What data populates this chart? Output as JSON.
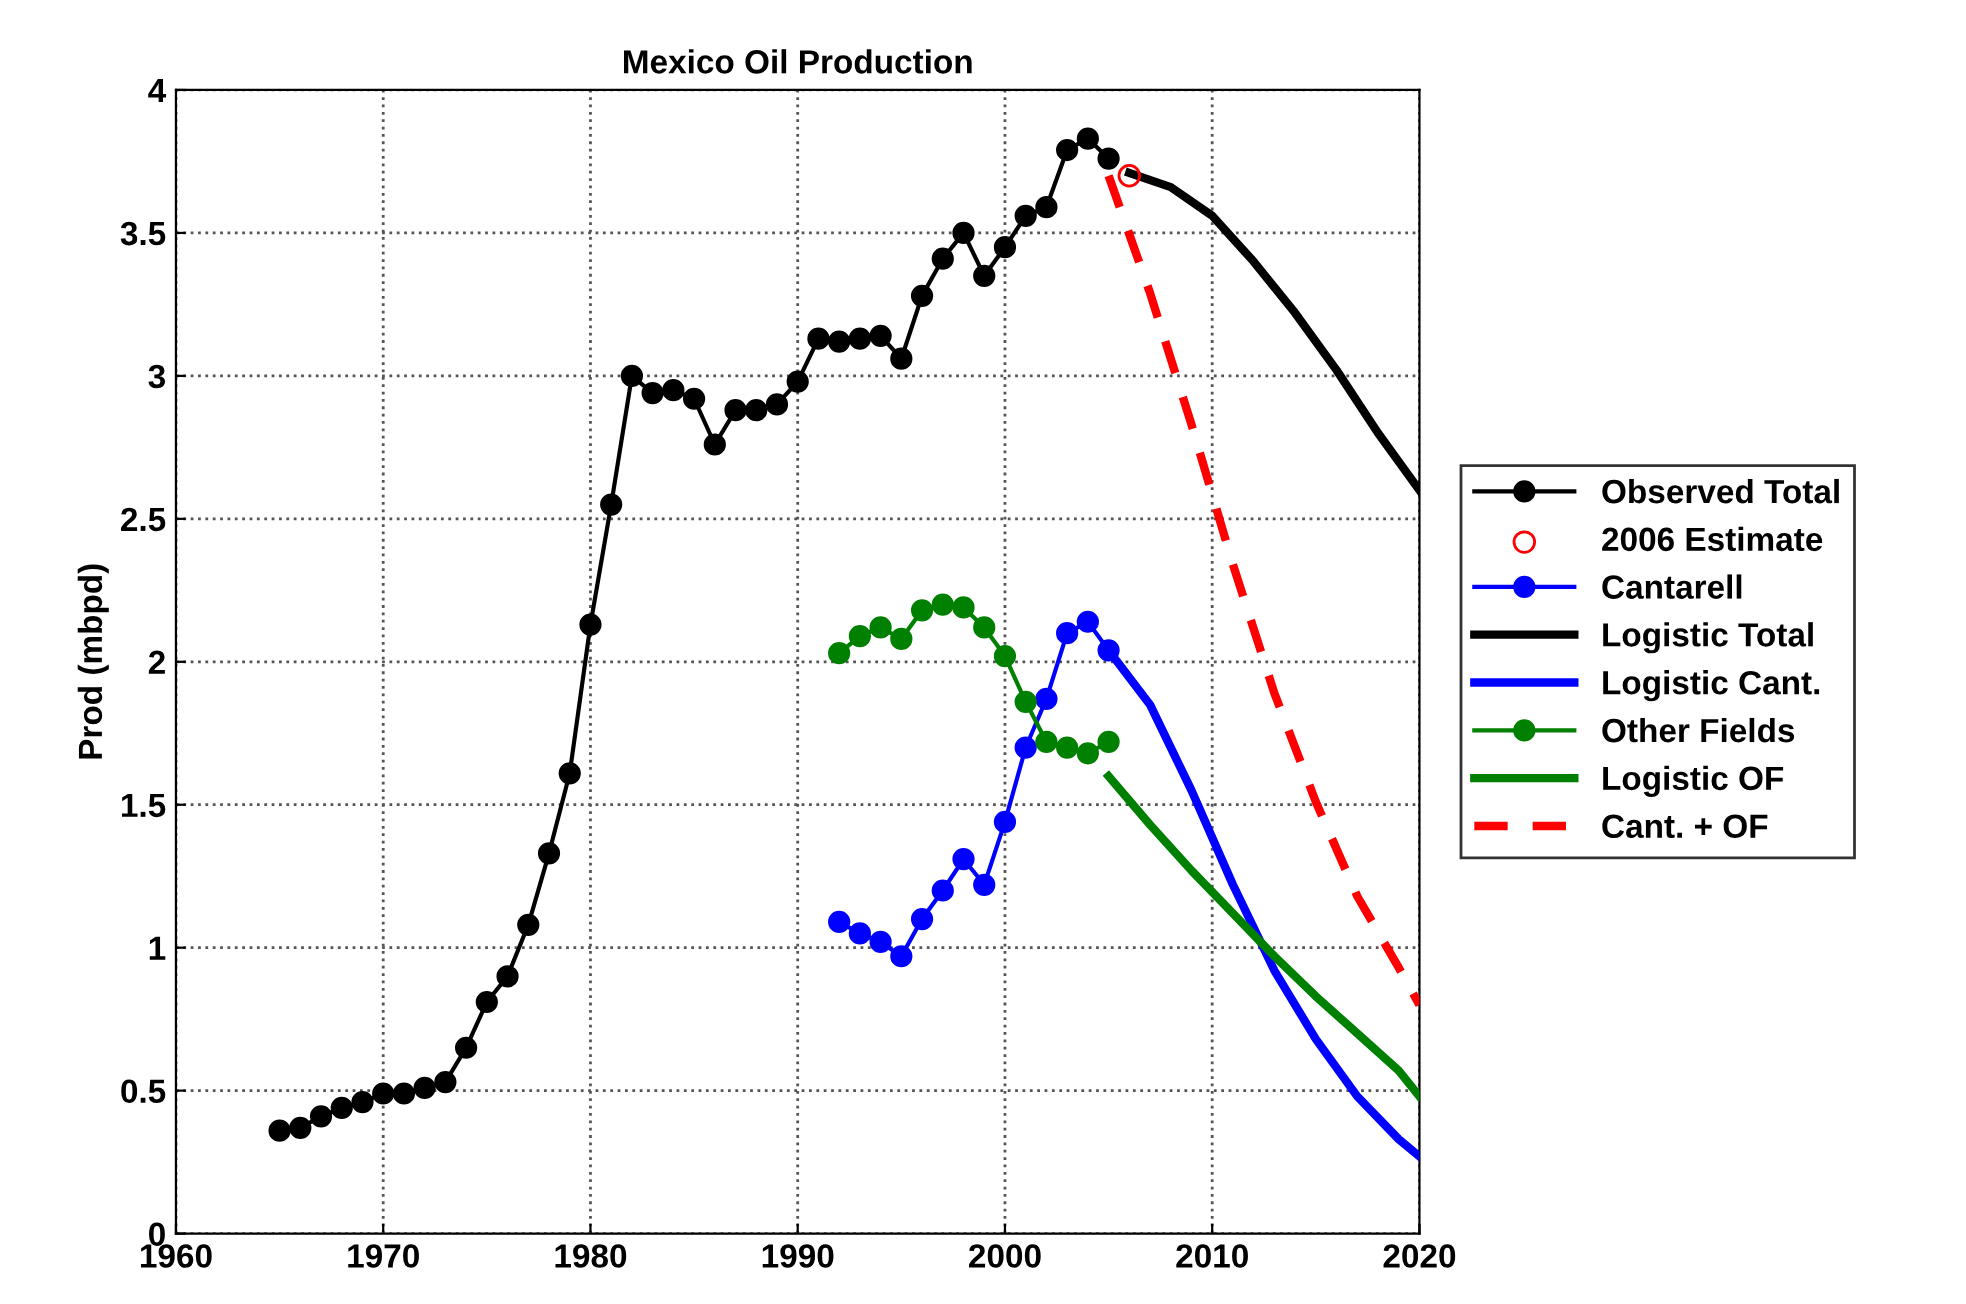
{
  "chart_data": {
    "type": "line",
    "title": "Mexico Oil Production",
    "ylabel": "Prod (mbpd)",
    "xlim": [
      1960,
      2020
    ],
    "xticks": [
      1960,
      1970,
      1980,
      1990,
      2000,
      2010,
      2020
    ],
    "ylim": [
      0,
      4
    ],
    "yticks": [
      0,
      0.5,
      1,
      1.5,
      2,
      2.5,
      3,
      3.5,
      4
    ],
    "grid": true,
    "legend": "right",
    "series": [
      {
        "name": "Observed Total",
        "color": "#000000",
        "marker": "circle",
        "line_style": "solid",
        "x": [
          1965,
          1966,
          1967,
          1968,
          1969,
          1970,
          1971,
          1972,
          1973,
          1974,
          1975,
          1976,
          1977,
          1978,
          1979,
          1980,
          1981,
          1982,
          1983,
          1984,
          1985,
          1986,
          1987,
          1988,
          1989,
          1990,
          1991,
          1992,
          1993,
          1994,
          1995,
          1996,
          1997,
          1998,
          1999,
          2000,
          2001,
          2002,
          2003,
          2004,
          2005
        ],
        "values": [
          0.36,
          0.37,
          0.41,
          0.44,
          0.46,
          0.49,
          0.49,
          0.51,
          0.53,
          0.65,
          0.81,
          0.9,
          1.08,
          1.33,
          1.61,
          2.13,
          2.55,
          3.0,
          2.94,
          2.95,
          2.92,
          2.76,
          2.88,
          2.88,
          2.9,
          2.98,
          3.13,
          3.12,
          3.13,
          3.14,
          3.06,
          3.28,
          3.41,
          3.5,
          3.35,
          3.45,
          3.56,
          3.59,
          3.79,
          3.83,
          3.76
        ]
      },
      {
        "name": "2006 Estimate",
        "color": "#ff0000",
        "type": "scatter",
        "marker": "circle",
        "x": [
          2006
        ],
        "values": [
          3.7
        ]
      },
      {
        "name": "Cantarell",
        "color": "#0000ff",
        "marker": "circle",
        "line_style": "solid",
        "x": [
          1992,
          1993,
          1994,
          1995,
          1996,
          1997,
          1998,
          1999,
          2000,
          2001,
          2002,
          2003,
          2004,
          2005
        ],
        "values": [
          1.09,
          1.05,
          1.02,
          0.97,
          1.1,
          1.2,
          1.31,
          1.22,
          1.44,
          1.7,
          1.87,
          2.1,
          2.14,
          2.04
        ]
      },
      {
        "name": "Logistic Total",
        "color": "#000000",
        "marker": "none",
        "line_style": "solid",
        "x": [
          2006,
          2008,
          2010,
          2012,
          2014,
          2016,
          2018,
          2020
        ],
        "values": [
          3.71,
          3.66,
          3.56,
          3.4,
          3.22,
          3.02,
          2.8,
          2.6
        ]
      },
      {
        "name": "Logistic Cant.",
        "color": "#0000ff",
        "marker": "none",
        "line_style": "solid",
        "x": [
          2005,
          2007,
          2009,
          2011,
          2013,
          2015,
          2017,
          2019,
          2020
        ],
        "values": [
          2.04,
          1.85,
          1.55,
          1.22,
          0.92,
          0.68,
          0.48,
          0.33,
          0.27
        ]
      },
      {
        "name": "Other Fields",
        "color": "#008000",
        "marker": "circle",
        "line_style": "solid",
        "x": [
          1992,
          1993,
          1994,
          1995,
          1996,
          1997,
          1998,
          1999,
          2000,
          2001,
          2002,
          2003,
          2004,
          2005
        ],
        "values": [
          2.03,
          2.09,
          2.12,
          2.08,
          2.18,
          2.2,
          2.19,
          2.12,
          2.02,
          1.86,
          1.72,
          1.7,
          1.68,
          1.72
        ]
      },
      {
        "name": "Logistic OF",
        "color": "#008000",
        "marker": "none",
        "line_style": "solid",
        "x": [
          2005,
          2007,
          2009,
          2011,
          2013,
          2015,
          2017,
          2019,
          2020
        ],
        "values": [
          1.6,
          1.43,
          1.27,
          1.12,
          0.97,
          0.83,
          0.7,
          0.57,
          0.48
        ]
      },
      {
        "name": "Cant. + OF",
        "color": "#ff0000",
        "marker": "none",
        "line_style": "dashed",
        "x": [
          2005,
          2007,
          2009,
          2011,
          2013,
          2015,
          2017,
          2019,
          2020
        ],
        "values": [
          3.7,
          3.29,
          2.83,
          2.34,
          1.89,
          1.51,
          1.18,
          0.93,
          0.8
        ]
      }
    ]
  }
}
